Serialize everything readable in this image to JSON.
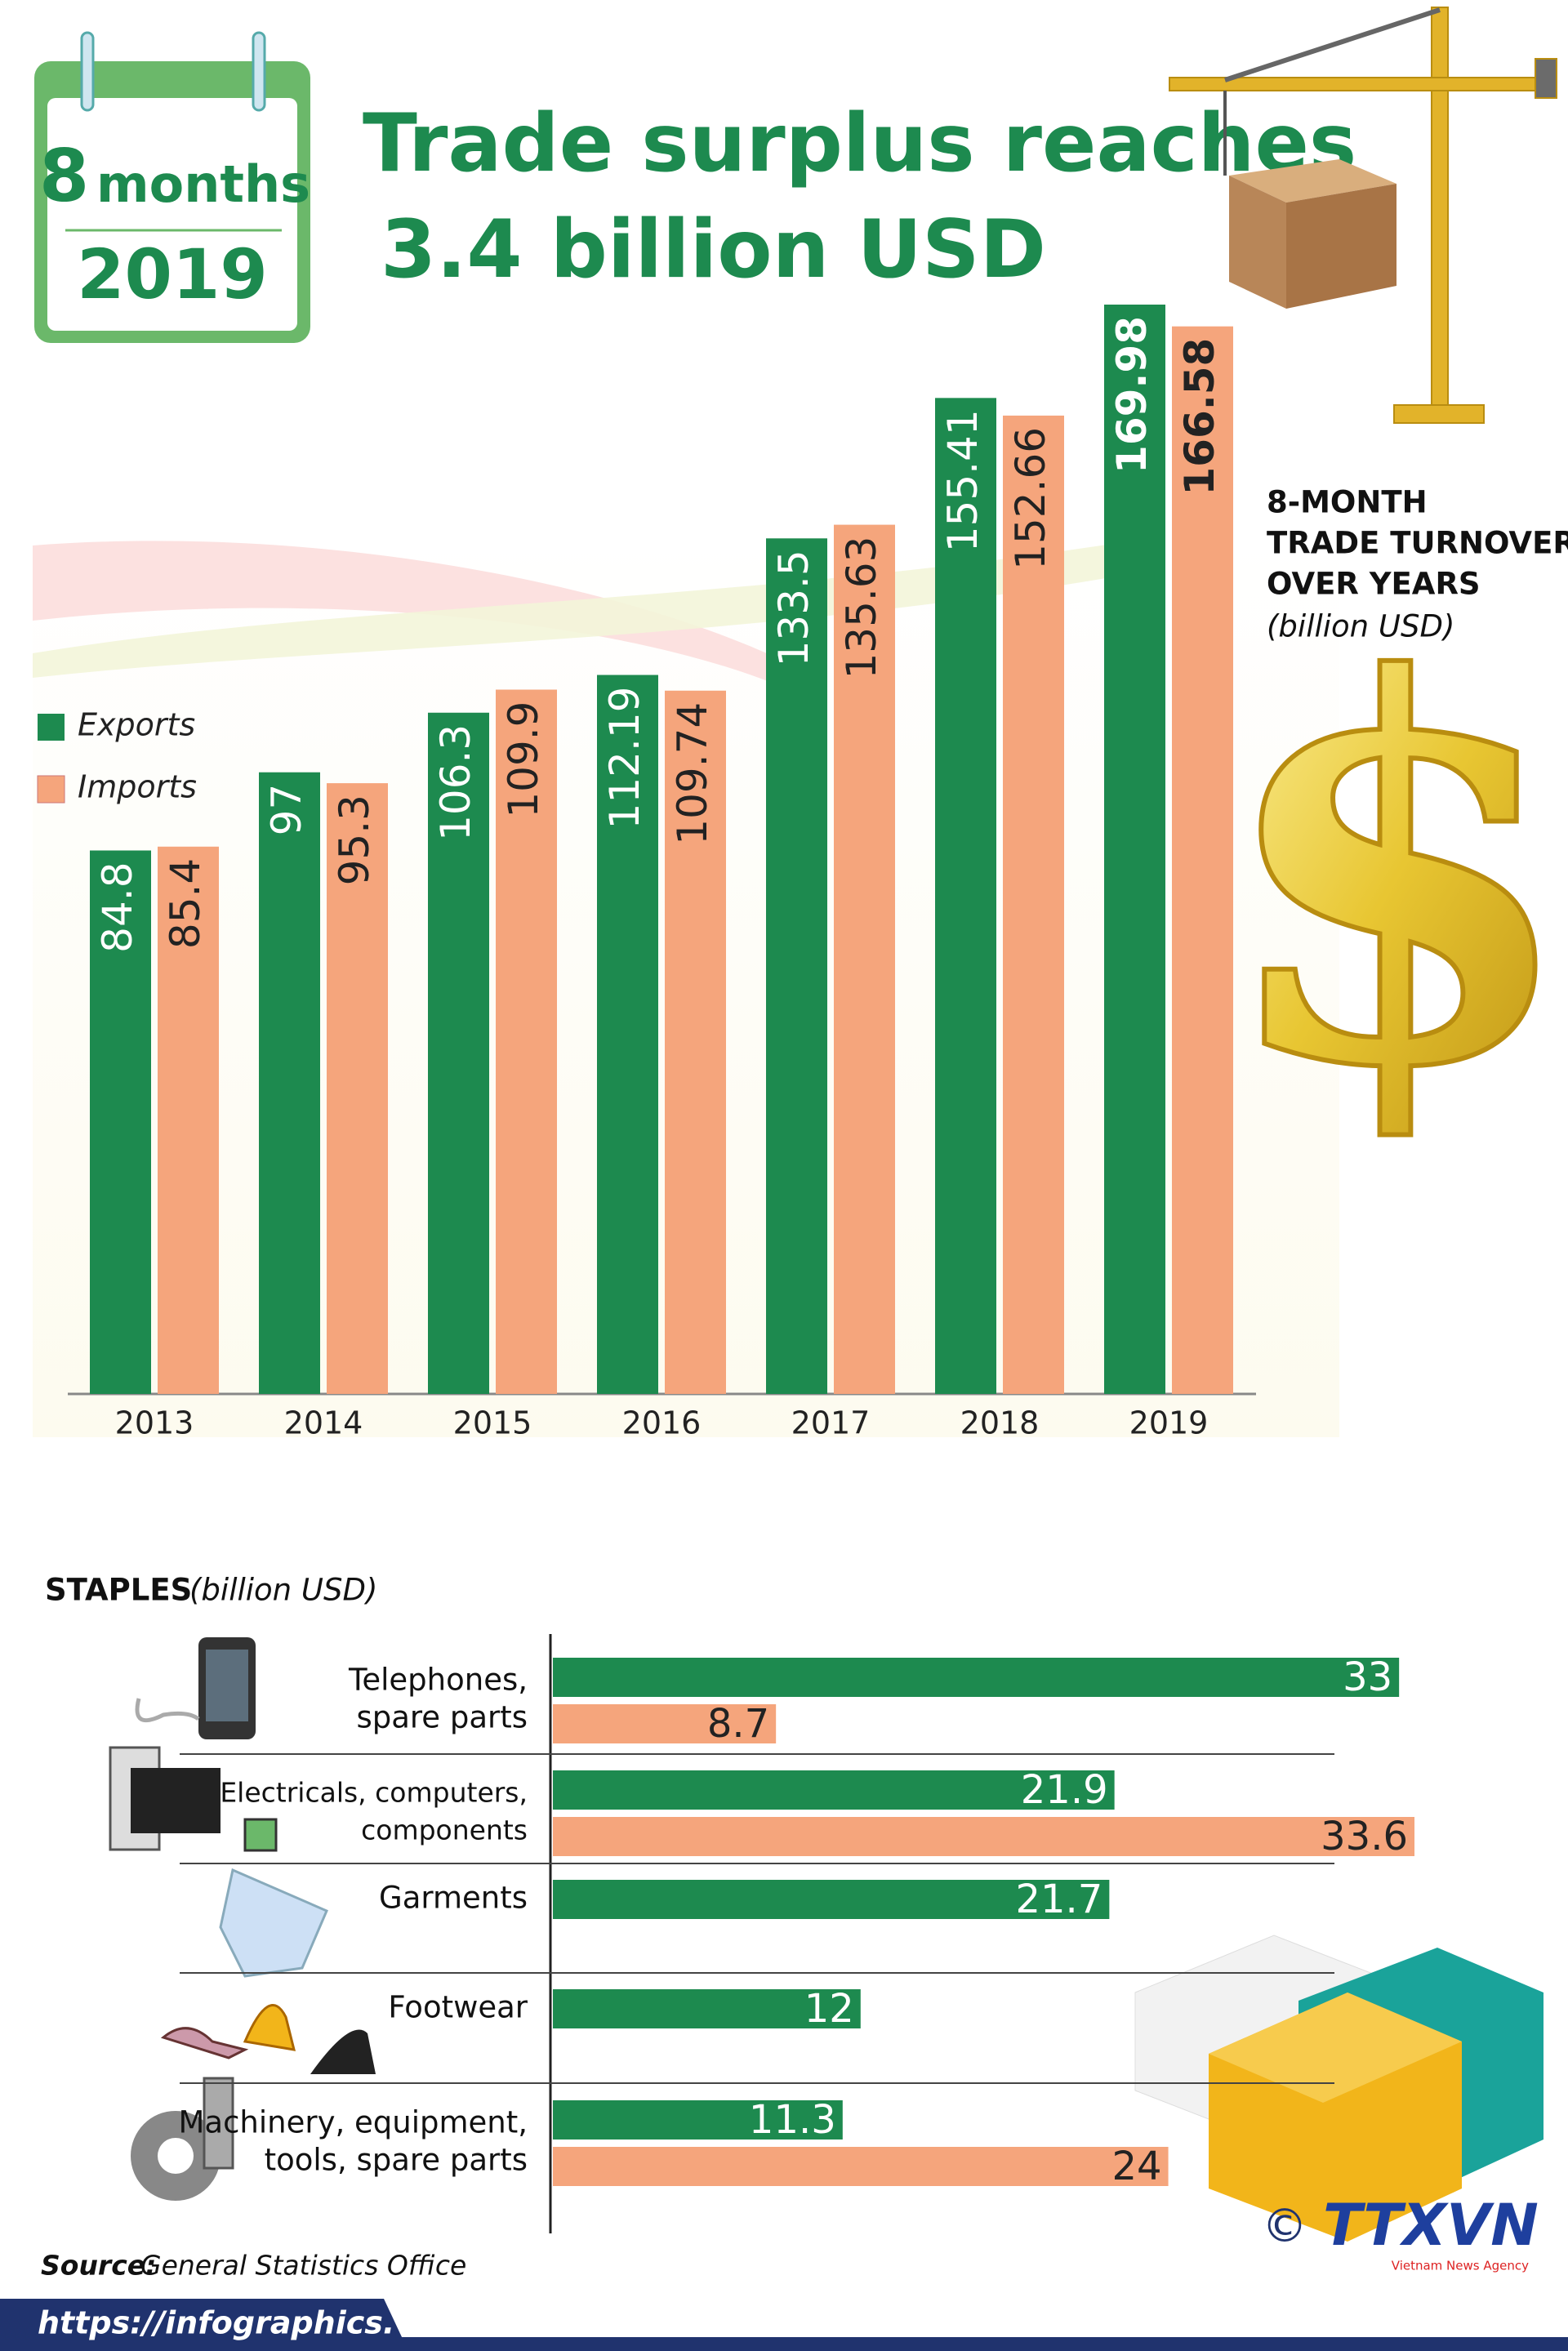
{
  "header": {
    "calendar_number": "8",
    "calendar_unit": "months",
    "calendar_year": "2019",
    "title_lines": [
      "Trade surplus reaches",
      "3.4 billion USD"
    ]
  },
  "chart_data": [
    {
      "type": "bar",
      "subtitle_lines": [
        "8-MONTH",
        "TRADE TURNOVER",
        "OVER YEARS"
      ],
      "unit": "(billion USD)",
      "categories": [
        "2013",
        "2014",
        "2015",
        "2016",
        "2017",
        "2018",
        "2019"
      ],
      "series": [
        {
          "name": "Exports",
          "color": "#1d8a4f",
          "values": [
            84.8,
            97,
            106.3,
            112.19,
            133.5,
            155.41,
            169.98
          ]
        },
        {
          "name": "Imports",
          "color": "#f5a57c",
          "values": [
            85.4,
            95.3,
            109.9,
            109.74,
            135.63,
            152.66,
            166.58
          ]
        }
      ]
    },
    {
      "type": "hbar",
      "title": "STAPLES",
      "unit": "(billion USD)",
      "categories": [
        [
          "Telephones,",
          "spare parts"
        ],
        [
          "Electricals, computers,",
          "components"
        ],
        [
          "Garments"
        ],
        [
          "Footwear"
        ],
        [
          "Machinery, equipment,",
          "tools, spare parts"
        ]
      ],
      "series": [
        {
          "color": "#1d8a4f",
          "values": [
            33,
            21.9,
            21.7,
            12,
            11.3
          ]
        },
        {
          "color": "#f5a57c",
          "values": [
            8.7,
            33.6,
            null,
            null,
            24
          ]
        }
      ]
    }
  ],
  "footer": {
    "source_label": "Source:",
    "source": "General Statistics Office",
    "url": "https://infographics.vn",
    "copyright": "©",
    "logo": "TTXVN",
    "agency": "Vietnam News Agency"
  }
}
